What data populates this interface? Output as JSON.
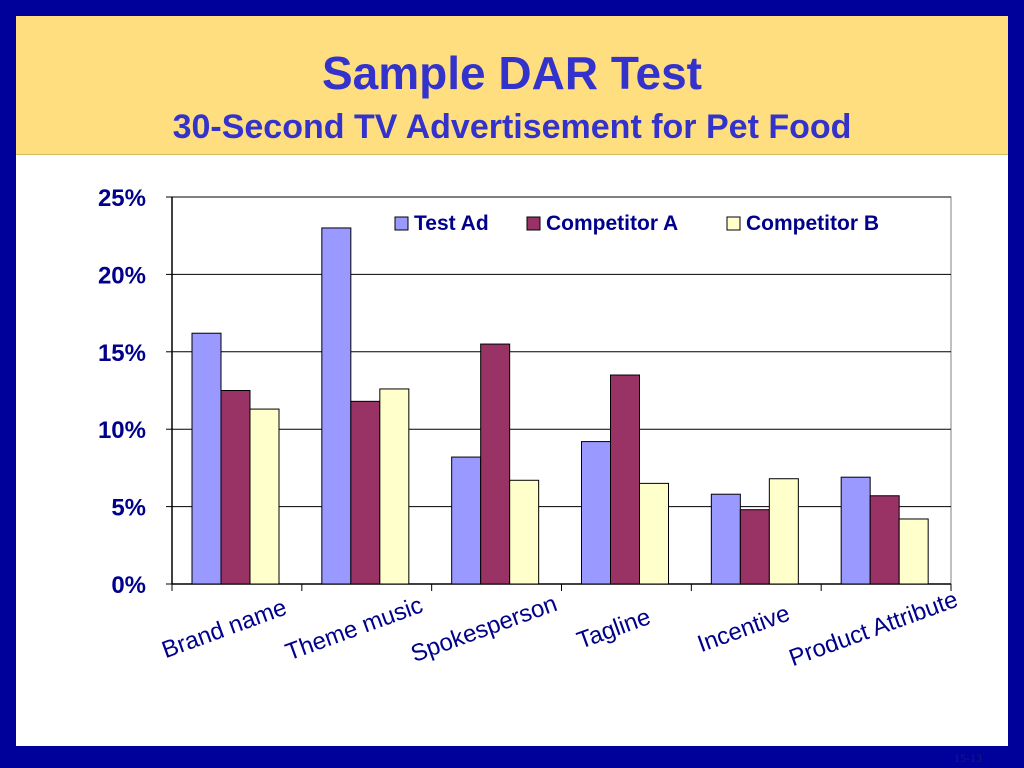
{
  "slide": {
    "title": "Sample DAR Test",
    "subtitle": "30-Second TV Advertisement for Pet Food",
    "slide_number": "15-13"
  },
  "chart_data": {
    "type": "bar",
    "categories": [
      "Brand name",
      "Theme music",
      "Spokesperson",
      "Tagline",
      "Incentive",
      "Product Attribute"
    ],
    "series": [
      {
        "name": "Test Ad",
        "color": "#9999ff",
        "values": [
          16.2,
          23.0,
          8.2,
          9.2,
          5.8,
          6.9
        ]
      },
      {
        "name": "Competitor A",
        "color": "#993366",
        "values": [
          12.5,
          11.8,
          15.5,
          13.5,
          4.8,
          5.7
        ]
      },
      {
        "name": "Competitor B",
        "color": "#ffffcc",
        "values": [
          11.3,
          12.6,
          6.7,
          6.5,
          6.8,
          4.2
        ]
      }
    ],
    "yticks": [
      "0%",
      "5%",
      "10%",
      "15%",
      "20%",
      "25%"
    ],
    "ylim": [
      0,
      25
    ],
    "grid": true,
    "legend": "top-right",
    "xlabel": "",
    "ylabel": ""
  }
}
